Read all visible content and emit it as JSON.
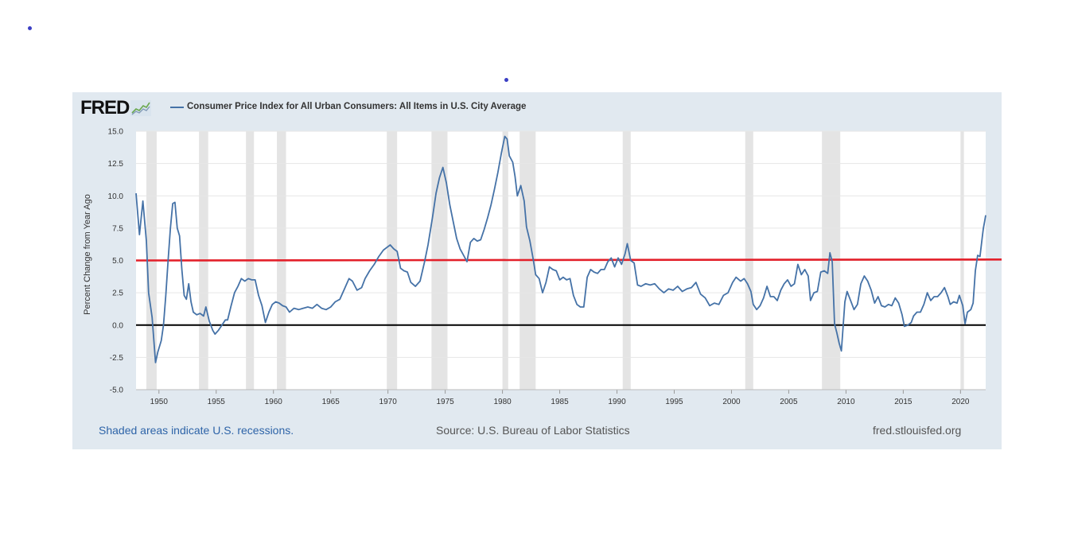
{
  "branding": {
    "logo_text": "FRED",
    "logo_icon": "sparkline-chart-icon"
  },
  "footer": {
    "recession_note": "Shaded areas indicate U.S. recessions.",
    "source": "Source: U.S. Bureau of Labor Statistics",
    "site": "fred.stlouisfed.org"
  },
  "chart_data": {
    "type": "line",
    "series": [
      {
        "name": "Consumer Price Index for All Urban Consumers: All Items in U.S. City Average",
        "color": "#4572a7",
        "points": [
          [
            1948.0,
            10.2
          ],
          [
            1948.3,
            7.0
          ],
          [
            1948.6,
            9.6
          ],
          [
            1948.9,
            6.5
          ],
          [
            1949.1,
            2.5
          ],
          [
            1949.4,
            0.6
          ],
          [
            1949.7,
            -2.9
          ],
          [
            1949.9,
            -2.1
          ],
          [
            1950.2,
            -1.2
          ],
          [
            1950.4,
            0.0
          ],
          [
            1950.6,
            2.3
          ],
          [
            1950.8,
            5.0
          ],
          [
            1951.0,
            7.5
          ],
          [
            1951.2,
            9.4
          ],
          [
            1951.4,
            9.5
          ],
          [
            1951.6,
            7.5
          ],
          [
            1951.8,
            6.9
          ],
          [
            1952.0,
            4.3
          ],
          [
            1952.2,
            2.3
          ],
          [
            1952.4,
            2.0
          ],
          [
            1952.6,
            3.2
          ],
          [
            1952.8,
            1.8
          ],
          [
            1953.0,
            1.0
          ],
          [
            1953.3,
            0.8
          ],
          [
            1953.6,
            0.9
          ],
          [
            1953.9,
            0.7
          ],
          [
            1954.1,
            1.4
          ],
          [
            1954.4,
            0.3
          ],
          [
            1954.7,
            -0.4
          ],
          [
            1954.9,
            -0.7
          ],
          [
            1955.2,
            -0.4
          ],
          [
            1955.5,
            0.0
          ],
          [
            1955.8,
            0.4
          ],
          [
            1956.0,
            0.4
          ],
          [
            1956.3,
            1.5
          ],
          [
            1956.6,
            2.5
          ],
          [
            1956.9,
            3.0
          ],
          [
            1957.2,
            3.6
          ],
          [
            1957.5,
            3.4
          ],
          [
            1957.8,
            3.6
          ],
          [
            1958.1,
            3.5
          ],
          [
            1958.4,
            3.5
          ],
          [
            1958.7,
            2.3
          ],
          [
            1959.0,
            1.5
          ],
          [
            1959.3,
            0.2
          ],
          [
            1959.6,
            1.0
          ],
          [
            1959.9,
            1.6
          ],
          [
            1960.2,
            1.8
          ],
          [
            1960.5,
            1.7
          ],
          [
            1960.8,
            1.5
          ],
          [
            1961.1,
            1.4
          ],
          [
            1961.4,
            1.0
          ],
          [
            1961.8,
            1.3
          ],
          [
            1962.2,
            1.2
          ],
          [
            1962.6,
            1.3
          ],
          [
            1963.0,
            1.4
          ],
          [
            1963.4,
            1.3
          ],
          [
            1963.8,
            1.6
          ],
          [
            1964.2,
            1.3
          ],
          [
            1964.6,
            1.2
          ],
          [
            1965.0,
            1.4
          ],
          [
            1965.4,
            1.8
          ],
          [
            1965.8,
            2.0
          ],
          [
            1966.2,
            2.8
          ],
          [
            1966.6,
            3.6
          ],
          [
            1966.9,
            3.4
          ],
          [
            1967.3,
            2.7
          ],
          [
            1967.7,
            2.9
          ],
          [
            1968.0,
            3.6
          ],
          [
            1968.4,
            4.2
          ],
          [
            1968.8,
            4.7
          ],
          [
            1969.2,
            5.3
          ],
          [
            1969.6,
            5.8
          ],
          [
            1969.9,
            6.0
          ],
          [
            1970.2,
            6.2
          ],
          [
            1970.5,
            5.9
          ],
          [
            1970.8,
            5.7
          ],
          [
            1971.1,
            4.4
          ],
          [
            1971.4,
            4.2
          ],
          [
            1971.7,
            4.1
          ],
          [
            1972.0,
            3.3
          ],
          [
            1972.4,
            3.0
          ],
          [
            1972.8,
            3.4
          ],
          [
            1973.2,
            4.9
          ],
          [
            1973.5,
            6.2
          ],
          [
            1973.9,
            8.4
          ],
          [
            1974.2,
            10.2
          ],
          [
            1974.5,
            11.4
          ],
          [
            1974.8,
            12.2
          ],
          [
            1975.1,
            11.0
          ],
          [
            1975.4,
            9.3
          ],
          [
            1975.7,
            8.0
          ],
          [
            1976.0,
            6.7
          ],
          [
            1976.3,
            5.9
          ],
          [
            1976.6,
            5.4
          ],
          [
            1976.9,
            4.9
          ],
          [
            1977.2,
            6.4
          ],
          [
            1977.5,
            6.7
          ],
          [
            1977.8,
            6.5
          ],
          [
            1978.1,
            6.6
          ],
          [
            1978.4,
            7.4
          ],
          [
            1978.7,
            8.3
          ],
          [
            1979.0,
            9.3
          ],
          [
            1979.3,
            10.5
          ],
          [
            1979.6,
            11.8
          ],
          [
            1979.9,
            13.3
          ],
          [
            1980.2,
            14.6
          ],
          [
            1980.4,
            14.4
          ],
          [
            1980.6,
            13.1
          ],
          [
            1980.9,
            12.6
          ],
          [
            1981.1,
            11.5
          ],
          [
            1981.3,
            10.0
          ],
          [
            1981.6,
            10.8
          ],
          [
            1981.9,
            9.6
          ],
          [
            1982.1,
            7.6
          ],
          [
            1982.4,
            6.5
          ],
          [
            1982.7,
            5.0
          ],
          [
            1982.9,
            3.9
          ],
          [
            1983.2,
            3.6
          ],
          [
            1983.5,
            2.5
          ],
          [
            1983.8,
            3.3
          ],
          [
            1984.1,
            4.5
          ],
          [
            1984.4,
            4.3
          ],
          [
            1984.7,
            4.2
          ],
          [
            1985.0,
            3.5
          ],
          [
            1985.3,
            3.7
          ],
          [
            1985.6,
            3.5
          ],
          [
            1985.9,
            3.6
          ],
          [
            1986.2,
            2.3
          ],
          [
            1986.5,
            1.6
          ],
          [
            1986.8,
            1.4
          ],
          [
            1987.1,
            1.4
          ],
          [
            1987.4,
            3.7
          ],
          [
            1987.7,
            4.3
          ],
          [
            1988.0,
            4.1
          ],
          [
            1988.3,
            4.0
          ],
          [
            1988.6,
            4.3
          ],
          [
            1988.9,
            4.3
          ],
          [
            1989.2,
            4.9
          ],
          [
            1989.5,
            5.2
          ],
          [
            1989.8,
            4.5
          ],
          [
            1990.1,
            5.2
          ],
          [
            1990.4,
            4.7
          ],
          [
            1990.7,
            5.5
          ],
          [
            1990.9,
            6.3
          ],
          [
            1991.2,
            5.0
          ],
          [
            1991.5,
            4.8
          ],
          [
            1991.8,
            3.1
          ],
          [
            1992.1,
            3.0
          ],
          [
            1992.5,
            3.2
          ],
          [
            1992.9,
            3.1
          ],
          [
            1993.3,
            3.2
          ],
          [
            1993.7,
            2.8
          ],
          [
            1994.1,
            2.5
          ],
          [
            1994.5,
            2.8
          ],
          [
            1994.9,
            2.7
          ],
          [
            1995.3,
            3.0
          ],
          [
            1995.7,
            2.6
          ],
          [
            1996.1,
            2.8
          ],
          [
            1996.5,
            2.9
          ],
          [
            1996.9,
            3.3
          ],
          [
            1997.3,
            2.4
          ],
          [
            1997.7,
            2.1
          ],
          [
            1998.1,
            1.5
          ],
          [
            1998.5,
            1.7
          ],
          [
            1998.9,
            1.6
          ],
          [
            1999.3,
            2.3
          ],
          [
            1999.7,
            2.5
          ],
          [
            2000.1,
            3.3
          ],
          [
            2000.4,
            3.7
          ],
          [
            2000.8,
            3.4
          ],
          [
            2001.1,
            3.6
          ],
          [
            2001.4,
            3.2
          ],
          [
            2001.7,
            2.6
          ],
          [
            2001.9,
            1.6
          ],
          [
            2002.2,
            1.2
          ],
          [
            2002.5,
            1.5
          ],
          [
            2002.8,
            2.1
          ],
          [
            2003.1,
            3.0
          ],
          [
            2003.4,
            2.2
          ],
          [
            2003.7,
            2.2
          ],
          [
            2004.0,
            1.9
          ],
          [
            2004.3,
            2.7
          ],
          [
            2004.6,
            3.2
          ],
          [
            2004.9,
            3.5
          ],
          [
            2005.2,
            3.0
          ],
          [
            2005.5,
            3.2
          ],
          [
            2005.8,
            4.7
          ],
          [
            2006.1,
            3.9
          ],
          [
            2006.4,
            4.3
          ],
          [
            2006.7,
            3.8
          ],
          [
            2006.9,
            1.9
          ],
          [
            2007.2,
            2.5
          ],
          [
            2007.5,
            2.6
          ],
          [
            2007.8,
            4.1
          ],
          [
            2008.1,
            4.2
          ],
          [
            2008.4,
            4.0
          ],
          [
            2008.6,
            5.6
          ],
          [
            2008.8,
            4.9
          ],
          [
            2009.0,
            0.1
          ],
          [
            2009.2,
            -0.6
          ],
          [
            2009.4,
            -1.4
          ],
          [
            2009.6,
            -2.0
          ],
          [
            2009.9,
            1.8
          ],
          [
            2010.1,
            2.6
          ],
          [
            2010.4,
            1.9
          ],
          [
            2010.7,
            1.2
          ],
          [
            2011.0,
            1.6
          ],
          [
            2011.3,
            3.2
          ],
          [
            2011.6,
            3.8
          ],
          [
            2011.9,
            3.4
          ],
          [
            2012.2,
            2.7
          ],
          [
            2012.5,
            1.7
          ],
          [
            2012.8,
            2.2
          ],
          [
            2013.1,
            1.5
          ],
          [
            2013.4,
            1.4
          ],
          [
            2013.7,
            1.6
          ],
          [
            2014.0,
            1.5
          ],
          [
            2014.3,
            2.1
          ],
          [
            2014.6,
            1.7
          ],
          [
            2014.9,
            0.8
          ],
          [
            2015.1,
            -0.1
          ],
          [
            2015.4,
            0.0
          ],
          [
            2015.7,
            0.2
          ],
          [
            2015.9,
            0.7
          ],
          [
            2016.2,
            1.0
          ],
          [
            2016.5,
            1.0
          ],
          [
            2016.8,
            1.6
          ],
          [
            2017.1,
            2.5
          ],
          [
            2017.4,
            1.9
          ],
          [
            2017.7,
            2.2
          ],
          [
            2018.0,
            2.2
          ],
          [
            2018.3,
            2.5
          ],
          [
            2018.6,
            2.9
          ],
          [
            2018.9,
            2.2
          ],
          [
            2019.1,
            1.6
          ],
          [
            2019.4,
            1.8
          ],
          [
            2019.7,
            1.7
          ],
          [
            2019.9,
            2.3
          ],
          [
            2020.2,
            1.5
          ],
          [
            2020.4,
            0.1
          ],
          [
            2020.6,
            1.0
          ],
          [
            2020.9,
            1.2
          ],
          [
            2021.1,
            1.7
          ],
          [
            2021.3,
            4.2
          ],
          [
            2021.5,
            5.4
          ],
          [
            2021.7,
            5.3
          ],
          [
            2021.9,
            6.8
          ],
          [
            2022.0,
            7.5
          ],
          [
            2022.1,
            8.0
          ],
          [
            2022.2,
            8.5
          ]
        ]
      }
    ],
    "reference_lines": [
      {
        "y": 0.0,
        "color": "#000000"
      },
      {
        "y": 5.0,
        "color": "#e3202a"
      }
    ],
    "recessions": [
      [
        1948.9,
        1949.8
      ],
      [
        1953.5,
        1954.3
      ],
      [
        1957.6,
        1958.3
      ],
      [
        1960.3,
        1961.1
      ],
      [
        1969.9,
        1970.8
      ],
      [
        1973.8,
        1975.2
      ],
      [
        1980.0,
        1980.5
      ],
      [
        1981.5,
        1982.9
      ],
      [
        1990.5,
        1991.2
      ],
      [
        2001.2,
        2001.9
      ],
      [
        2007.9,
        2009.5
      ],
      [
        2020.0,
        2020.3
      ]
    ],
    "xlim": [
      1948.0,
      2022.2
    ],
    "ylim": [
      -5.0,
      15.0
    ],
    "x_tick_values": [
      1950,
      1955,
      1960,
      1965,
      1970,
      1975,
      1980,
      1985,
      1990,
      1995,
      2000,
      2005,
      2010,
      2015,
      2020
    ],
    "x_tick_labels": [
      "1950",
      "1955",
      "1960",
      "1965",
      "1970",
      "1975",
      "1980",
      "1985",
      "1990",
      "1995",
      "2000",
      "2005",
      "2010",
      "2015",
      "2020"
    ],
    "y_tick_values": [
      -5.0,
      -2.5,
      0.0,
      2.5,
      5.0,
      7.5,
      10.0,
      12.5,
      15.0
    ],
    "y_tick_labels": [
      "-5.0",
      "-2.5",
      "0.0",
      "2.5",
      "5.0",
      "7.5",
      "10.0",
      "12.5",
      "15.0"
    ],
    "xlabel": "",
    "ylabel": "Percent Change from Year Ago",
    "grid": true,
    "legend": "top-left"
  }
}
